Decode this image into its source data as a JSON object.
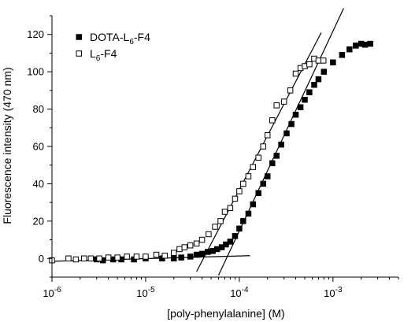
{
  "chart_data": {
    "type": "scatter",
    "xlabel": "[poly-phenylalanine] (M)",
    "ylabel": "Fluorescence intensity (470 nm)",
    "x_scale": "log",
    "xlim": [
      1e-06,
      0.005
    ],
    "ylim": [
      -10,
      130
    ],
    "x_ticks": [
      1e-06,
      1e-05,
      0.0001,
      0.001
    ],
    "x_tick_labels": [
      {
        "base": "10",
        "exp": "-6"
      },
      {
        "base": "10",
        "exp": "-5"
      },
      {
        "base": "10",
        "exp": "-4"
      },
      {
        "base": "10",
        "exp": "-3"
      }
    ],
    "y_ticks": [
      0,
      20,
      40,
      60,
      80,
      100,
      120
    ],
    "y_tick_labels": [
      "0",
      "20",
      "40",
      "60",
      "80",
      "100",
      "120"
    ],
    "grid": false,
    "legend_position": "top-left",
    "series": [
      {
        "name": "DOTA-L6-F4",
        "legend_parts": {
          "a": "DOTA-L",
          "sub": "6",
          "b": "-F4"
        },
        "marker": "filled-square",
        "color": "#000000",
        "x": [
          3e-06,
          3.5e-06,
          4.5e-06,
          5.5e-06,
          7.5e-06,
          1e-05,
          1.5e-05,
          2e-05,
          2.4e-05,
          3e-05,
          3.5e-05,
          4e-05,
          4.6e-05,
          5.2e-05,
          5.8e-05,
          6.5e-05,
          7.2e-05,
          8e-05,
          9e-05,
          0.0001,
          0.00011,
          0.000125,
          0.00014,
          0.00016,
          0.00018,
          0.0002,
          0.000225,
          0.00025,
          0.00028,
          0.00032,
          0.00036,
          0.0004,
          0.00045,
          0.0005,
          0.00056,
          0.00063,
          0.0007,
          0.0008,
          0.001,
          0.00125,
          0.0015,
          0.00175,
          0.002,
          0.0022,
          0.0025
        ],
        "y": [
          -0.5,
          -1,
          -0.5,
          -0.5,
          -0.5,
          0,
          0,
          0,
          0.5,
          1,
          2,
          2.5,
          3.5,
          4,
          5,
          6,
          7.5,
          9,
          12,
          16,
          20,
          24,
          29,
          35,
          40,
          44,
          51,
          55,
          61,
          67,
          72,
          77,
          81,
          85,
          89,
          93,
          96,
          100,
          105,
          109,
          112,
          114,
          115,
          114.5,
          115
        ]
      },
      {
        "name": "L6-F4",
        "legend_parts": {
          "a": "L",
          "sub": "6",
          "b": "-F4"
        },
        "marker": "open-square",
        "color": "#000000",
        "x": [
          1e-06,
          1.5e-06,
          1.8e-06,
          2.2e-06,
          2.6e-06,
          3.2e-06,
          4e-06,
          5e-06,
          6.3e-06,
          8e-06,
          1e-05,
          1.3e-05,
          1.6e-05,
          2e-05,
          2.3e-05,
          2.6e-05,
          3e-05,
          3.5e-05,
          4e-05,
          4.7e-05,
          5.5e-05,
          6.3e-05,
          7e-05,
          8e-05,
          9e-05,
          0.0001,
          0.00011,
          0.000125,
          0.00014,
          0.00016,
          0.00018,
          0.0002,
          0.000225,
          0.00025,
          0.0003,
          0.00035,
          0.0004,
          0.00045,
          0.0005,
          0.00056,
          0.00063,
          0.0007,
          0.00079
        ],
        "y": [
          -1,
          0,
          -0.5,
          0,
          0,
          0,
          0.5,
          0.5,
          1,
          1,
          1,
          2,
          1.5,
          3,
          5,
          6,
          7,
          8,
          10,
          13,
          17,
          20,
          25,
          27,
          32,
          36,
          40,
          44,
          49,
          54,
          60,
          66,
          74,
          82,
          84,
          90,
          99,
          102,
          103,
          104,
          107,
          106,
          106
        ]
      }
    ],
    "fit_lines": [
      {
        "x": [
          3.5e-05,
          0.00075
        ],
        "y": [
          -7,
          121
        ]
      },
      {
        "x": [
          6e-05,
          0.0013
        ],
        "y": [
          -9,
          134
        ]
      },
      {
        "x": [
          1e-06,
          0.00013
        ],
        "y": [
          -1.5,
          1.5
        ]
      }
    ]
  }
}
